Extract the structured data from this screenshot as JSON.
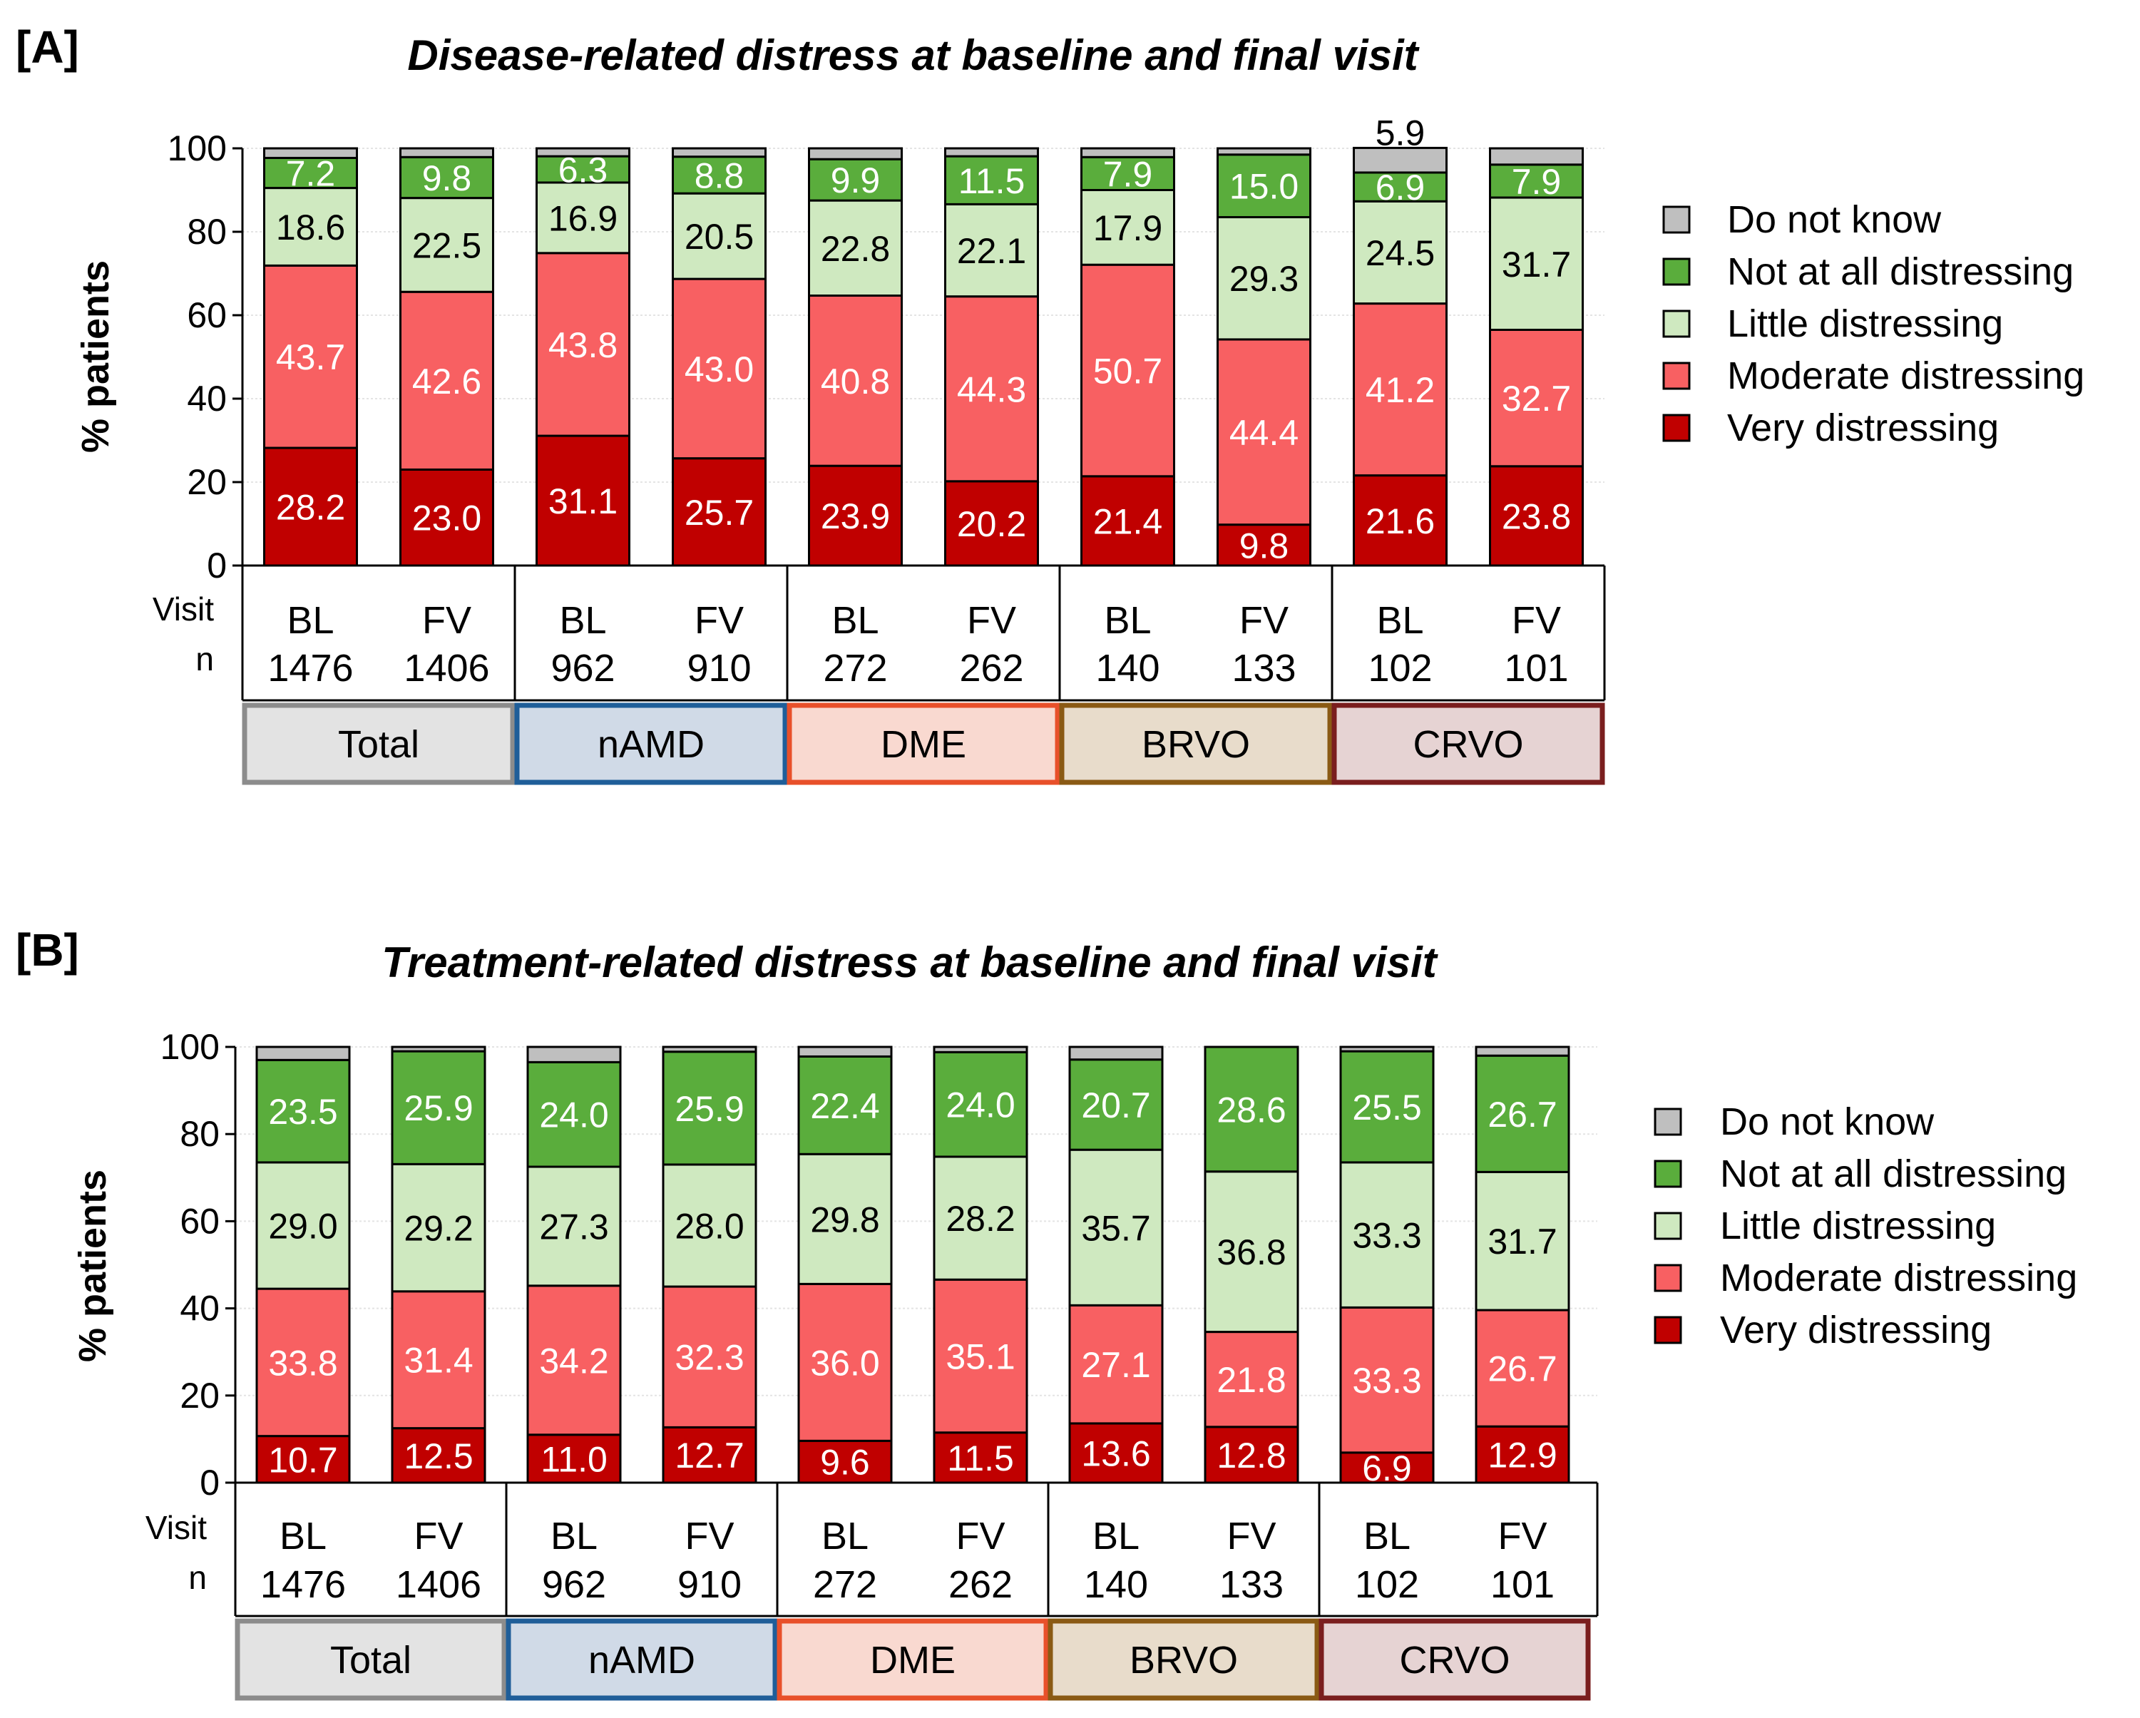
{
  "chart_data": [
    {
      "type": "bar",
      "stacked": true,
      "panel_label": "[A]",
      "title": "Disease-related distress at baseline and final visit",
      "ylabel": "% patients",
      "ylim": [
        0,
        100
      ],
      "yticks": [
        0,
        20,
        40,
        60,
        80,
        100
      ],
      "legend_position": "right",
      "row_labels": {
        "visit": "Visit",
        "n": "n"
      },
      "categories": [
        "BL",
        "FV",
        "BL",
        "FV",
        "BL",
        "FV",
        "BL",
        "FV",
        "BL",
        "FV"
      ],
      "n": [
        "1476",
        "1406",
        "962",
        "910",
        "272",
        "262",
        "140",
        "133",
        "102",
        "101"
      ],
      "groups": [
        {
          "name": "Total",
          "span": [
            0,
            1
          ],
          "fill": "#e3e3e3",
          "border": "#8c8c8c"
        },
        {
          "name": "nAMD",
          "span": [
            2,
            3
          ],
          "fill": "#d0dae7",
          "border": "#1f5e99"
        },
        {
          "name": "DME",
          "span": [
            4,
            5
          ],
          "fill": "#f9d9d0",
          "border": "#e8502a"
        },
        {
          "name": "BRVO",
          "span": [
            6,
            7
          ],
          "fill": "#e8dccb",
          "border": "#8a5a14"
        },
        {
          "name": "CRVO",
          "span": [
            8,
            9
          ],
          "fill": "#e6d3d3",
          "border": "#7a1e1e"
        }
      ],
      "series": [
        {
          "name": "Very distressing",
          "color": "#c00000",
          "label_color": "#ffffff",
          "values": [
            28.2,
            23.0,
            31.1,
            25.7,
            23.9,
            20.2,
            21.4,
            9.8,
            21.6,
            23.8
          ]
        },
        {
          "name": "Moderate distressing",
          "color": "#f86062",
          "label_color": "#ffffff",
          "values": [
            43.7,
            42.6,
            43.8,
            43.0,
            40.8,
            44.3,
            50.7,
            44.4,
            41.2,
            32.7
          ]
        },
        {
          "name": "Little distressing",
          "color": "#cfe9c0",
          "label_color": "#000000",
          "values": [
            18.6,
            22.5,
            16.9,
            20.5,
            22.8,
            22.1,
            17.9,
            29.3,
            24.5,
            31.7
          ]
        },
        {
          "name": "Not at all distressing",
          "color": "#5aad3c",
          "label_color": "#ffffff",
          "values": [
            7.2,
            9.8,
            6.3,
            8.8,
            9.9,
            11.5,
            7.9,
            15.0,
            6.9,
            7.9
          ]
        },
        {
          "name": "Do not know",
          "color": "#bfbfbf",
          "label_color": "#000000",
          "values": [
            2.3,
            2.1,
            1.9,
            2.0,
            2.6,
            1.9,
            2.1,
            1.5,
            5.9,
            3.9
          ],
          "shown_labels": {
            "8": "5.9"
          }
        }
      ]
    },
    {
      "type": "bar",
      "stacked": true,
      "panel_label": "[B]",
      "title": "Treatment-related distress at baseline and final visit",
      "ylabel": "% patients",
      "ylim": [
        0,
        100
      ],
      "yticks": [
        0,
        20,
        40,
        60,
        80,
        100
      ],
      "legend_position": "right",
      "row_labels": {
        "visit": "Visit",
        "n": "n"
      },
      "categories": [
        "BL",
        "FV",
        "BL",
        "FV",
        "BL",
        "FV",
        "BL",
        "FV",
        "BL",
        "FV"
      ],
      "n": [
        "1476",
        "1406",
        "962",
        "910",
        "272",
        "262",
        "140",
        "133",
        "102",
        "101"
      ],
      "groups": [
        {
          "name": "Total",
          "span": [
            0,
            1
          ],
          "fill": "#e3e3e3",
          "border": "#8c8c8c"
        },
        {
          "name": "nAMD",
          "span": [
            2,
            3
          ],
          "fill": "#d0dae7",
          "border": "#1f5e99"
        },
        {
          "name": "DME",
          "span": [
            4,
            5
          ],
          "fill": "#f9d9d0",
          "border": "#e8502a"
        },
        {
          "name": "BRVO",
          "span": [
            6,
            7
          ],
          "fill": "#e8dccb",
          "border": "#8a5a14"
        },
        {
          "name": "CRVO",
          "span": [
            8,
            9
          ],
          "fill": "#e6d3d3",
          "border": "#7a1e1e"
        }
      ],
      "series": [
        {
          "name": "Very distressing",
          "color": "#c00000",
          "label_color": "#ffffff",
          "values": [
            10.7,
            12.5,
            11.0,
            12.7,
            9.6,
            11.5,
            13.6,
            12.8,
            6.9,
            12.9
          ]
        },
        {
          "name": "Moderate distressing",
          "color": "#f86062",
          "label_color": "#ffffff",
          "values": [
            33.8,
            31.4,
            34.2,
            32.3,
            36.0,
            35.1,
            27.1,
            21.8,
            33.3,
            26.7
          ]
        },
        {
          "name": "Little distressing",
          "color": "#cfe9c0",
          "label_color": "#000000",
          "values": [
            29.0,
            29.2,
            27.3,
            28.0,
            29.8,
            28.2,
            35.7,
            36.8,
            33.3,
            31.7
          ]
        },
        {
          "name": "Not at all distressing",
          "color": "#5aad3c",
          "label_color": "#ffffff",
          "values": [
            23.5,
            25.9,
            24.0,
            25.9,
            22.4,
            24.0,
            20.7,
            28.6,
            25.5,
            26.7
          ]
        },
        {
          "name": "Do not know",
          "color": "#bfbfbf",
          "label_color": "#000000",
          "values": [
            3.0,
            1.0,
            3.5,
            1.1,
            2.2,
            1.2,
            2.9,
            0.0,
            1.0,
            2.0
          ],
          "shown_labels": {}
        }
      ]
    }
  ]
}
